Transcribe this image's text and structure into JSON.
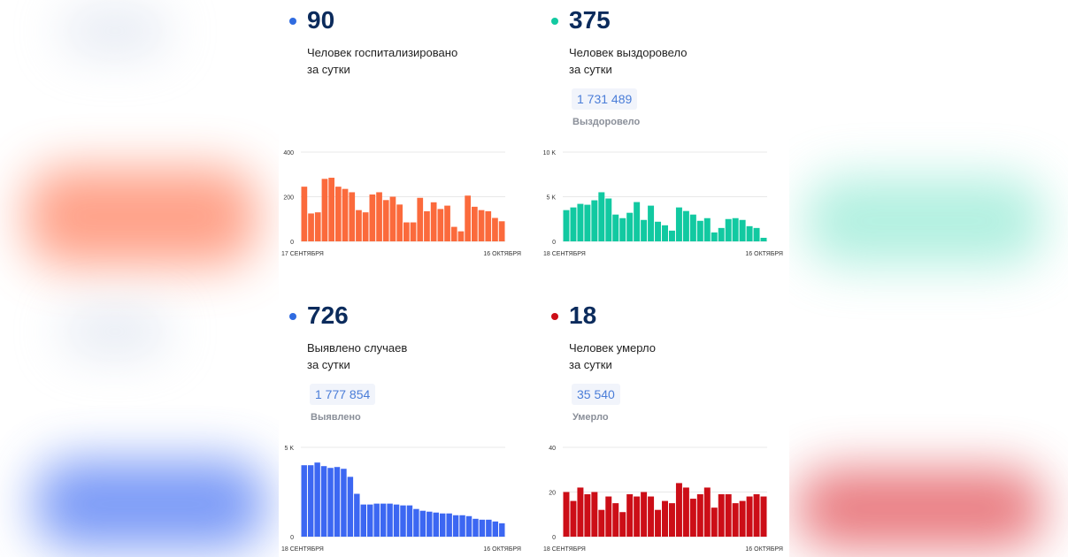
{
  "cards": [
    {
      "value": "90",
      "line1": "Человек госпитализировано",
      "line2": "за сутки",
      "total": "",
      "total_label": "",
      "color": "#fb6a3c",
      "dot_color": "#2f6be0",
      "chart_data": {
        "type": "bar",
        "x_start": "17 СЕНТЯБРЯ",
        "x_end": "16 ОКТЯБРЯ",
        "y_ticks": [
          "0",
          "200",
          "400"
        ],
        "ylim": [
          0,
          400
        ],
        "values": [
          245,
          125,
          130,
          280,
          285,
          245,
          235,
          220,
          140,
          130,
          210,
          220,
          185,
          200,
          165,
          85,
          85,
          195,
          135,
          175,
          145,
          160,
          65,
          45,
          205,
          155,
          140,
          135,
          105,
          90
        ]
      }
    },
    {
      "value": "375",
      "line1": "Человек выздоровело",
      "line2": "за сутки",
      "total": "1 731 489",
      "total_label": "Выздоровело",
      "color": "#12c9a1",
      "dot_color": "#12c9a1",
      "chart_data": {
        "type": "bar",
        "x_start": "18 СЕНТЯБРЯ",
        "x_end": "16 ОКТЯБРЯ",
        "y_ticks": [
          "0",
          "5 K",
          "10 K"
        ],
        "ylim": [
          0,
          10000
        ],
        "values": [
          3500,
          3800,
          4200,
          4100,
          4600,
          5500,
          4800,
          3000,
          2600,
          3200,
          4400,
          2400,
          4000,
          2200,
          1800,
          1200,
          3800,
          3400,
          3000,
          2300,
          2600,
          1000,
          1500,
          2500,
          2600,
          2400,
          1700,
          1500,
          400
        ]
      }
    },
    {
      "value": "726",
      "line1": "Выявлено случаев",
      "line2": "за сутки",
      "total": "1 777 854",
      "total_label": "Выявлено",
      "color": "#3c67f2",
      "dot_color": "#2f6be0",
      "chart_data": {
        "type": "bar",
        "x_start": "18 СЕНТЯБРЯ",
        "x_end": "16 ОКТЯБРЯ",
        "y_ticks": [
          "0",
          "5 K"
        ],
        "ylim": [
          0,
          5000
        ],
        "values": [
          4000,
          4000,
          4150,
          3950,
          3850,
          3900,
          3800,
          3350,
          2400,
          1800,
          1800,
          1850,
          1850,
          1850,
          1800,
          1750,
          1750,
          1550,
          1450,
          1400,
          1350,
          1300,
          1300,
          1200,
          1200,
          1150,
          1000,
          950,
          950,
          850,
          750
        ]
      }
    },
    {
      "value": "18",
      "line1": "Человек умерло",
      "line2": "за сутки",
      "total": "35 540",
      "total_label": "Умерло",
      "color": "#cc0e17",
      "dot_color": "#cc0e17",
      "chart_data": {
        "type": "bar",
        "x_start": "18 СЕНТЯБРЯ",
        "x_end": "16 ОКТЯБРЯ",
        "y_ticks": [
          "0",
          "20",
          "40"
        ],
        "ylim": [
          0,
          40
        ],
        "values": [
          20,
          16,
          22,
          19,
          20,
          12,
          18,
          15,
          11,
          19,
          18,
          20,
          18,
          12,
          16,
          15,
          24,
          22,
          17,
          19,
          22,
          13,
          19,
          19,
          15,
          16,
          18,
          19,
          18
        ]
      }
    }
  ]
}
